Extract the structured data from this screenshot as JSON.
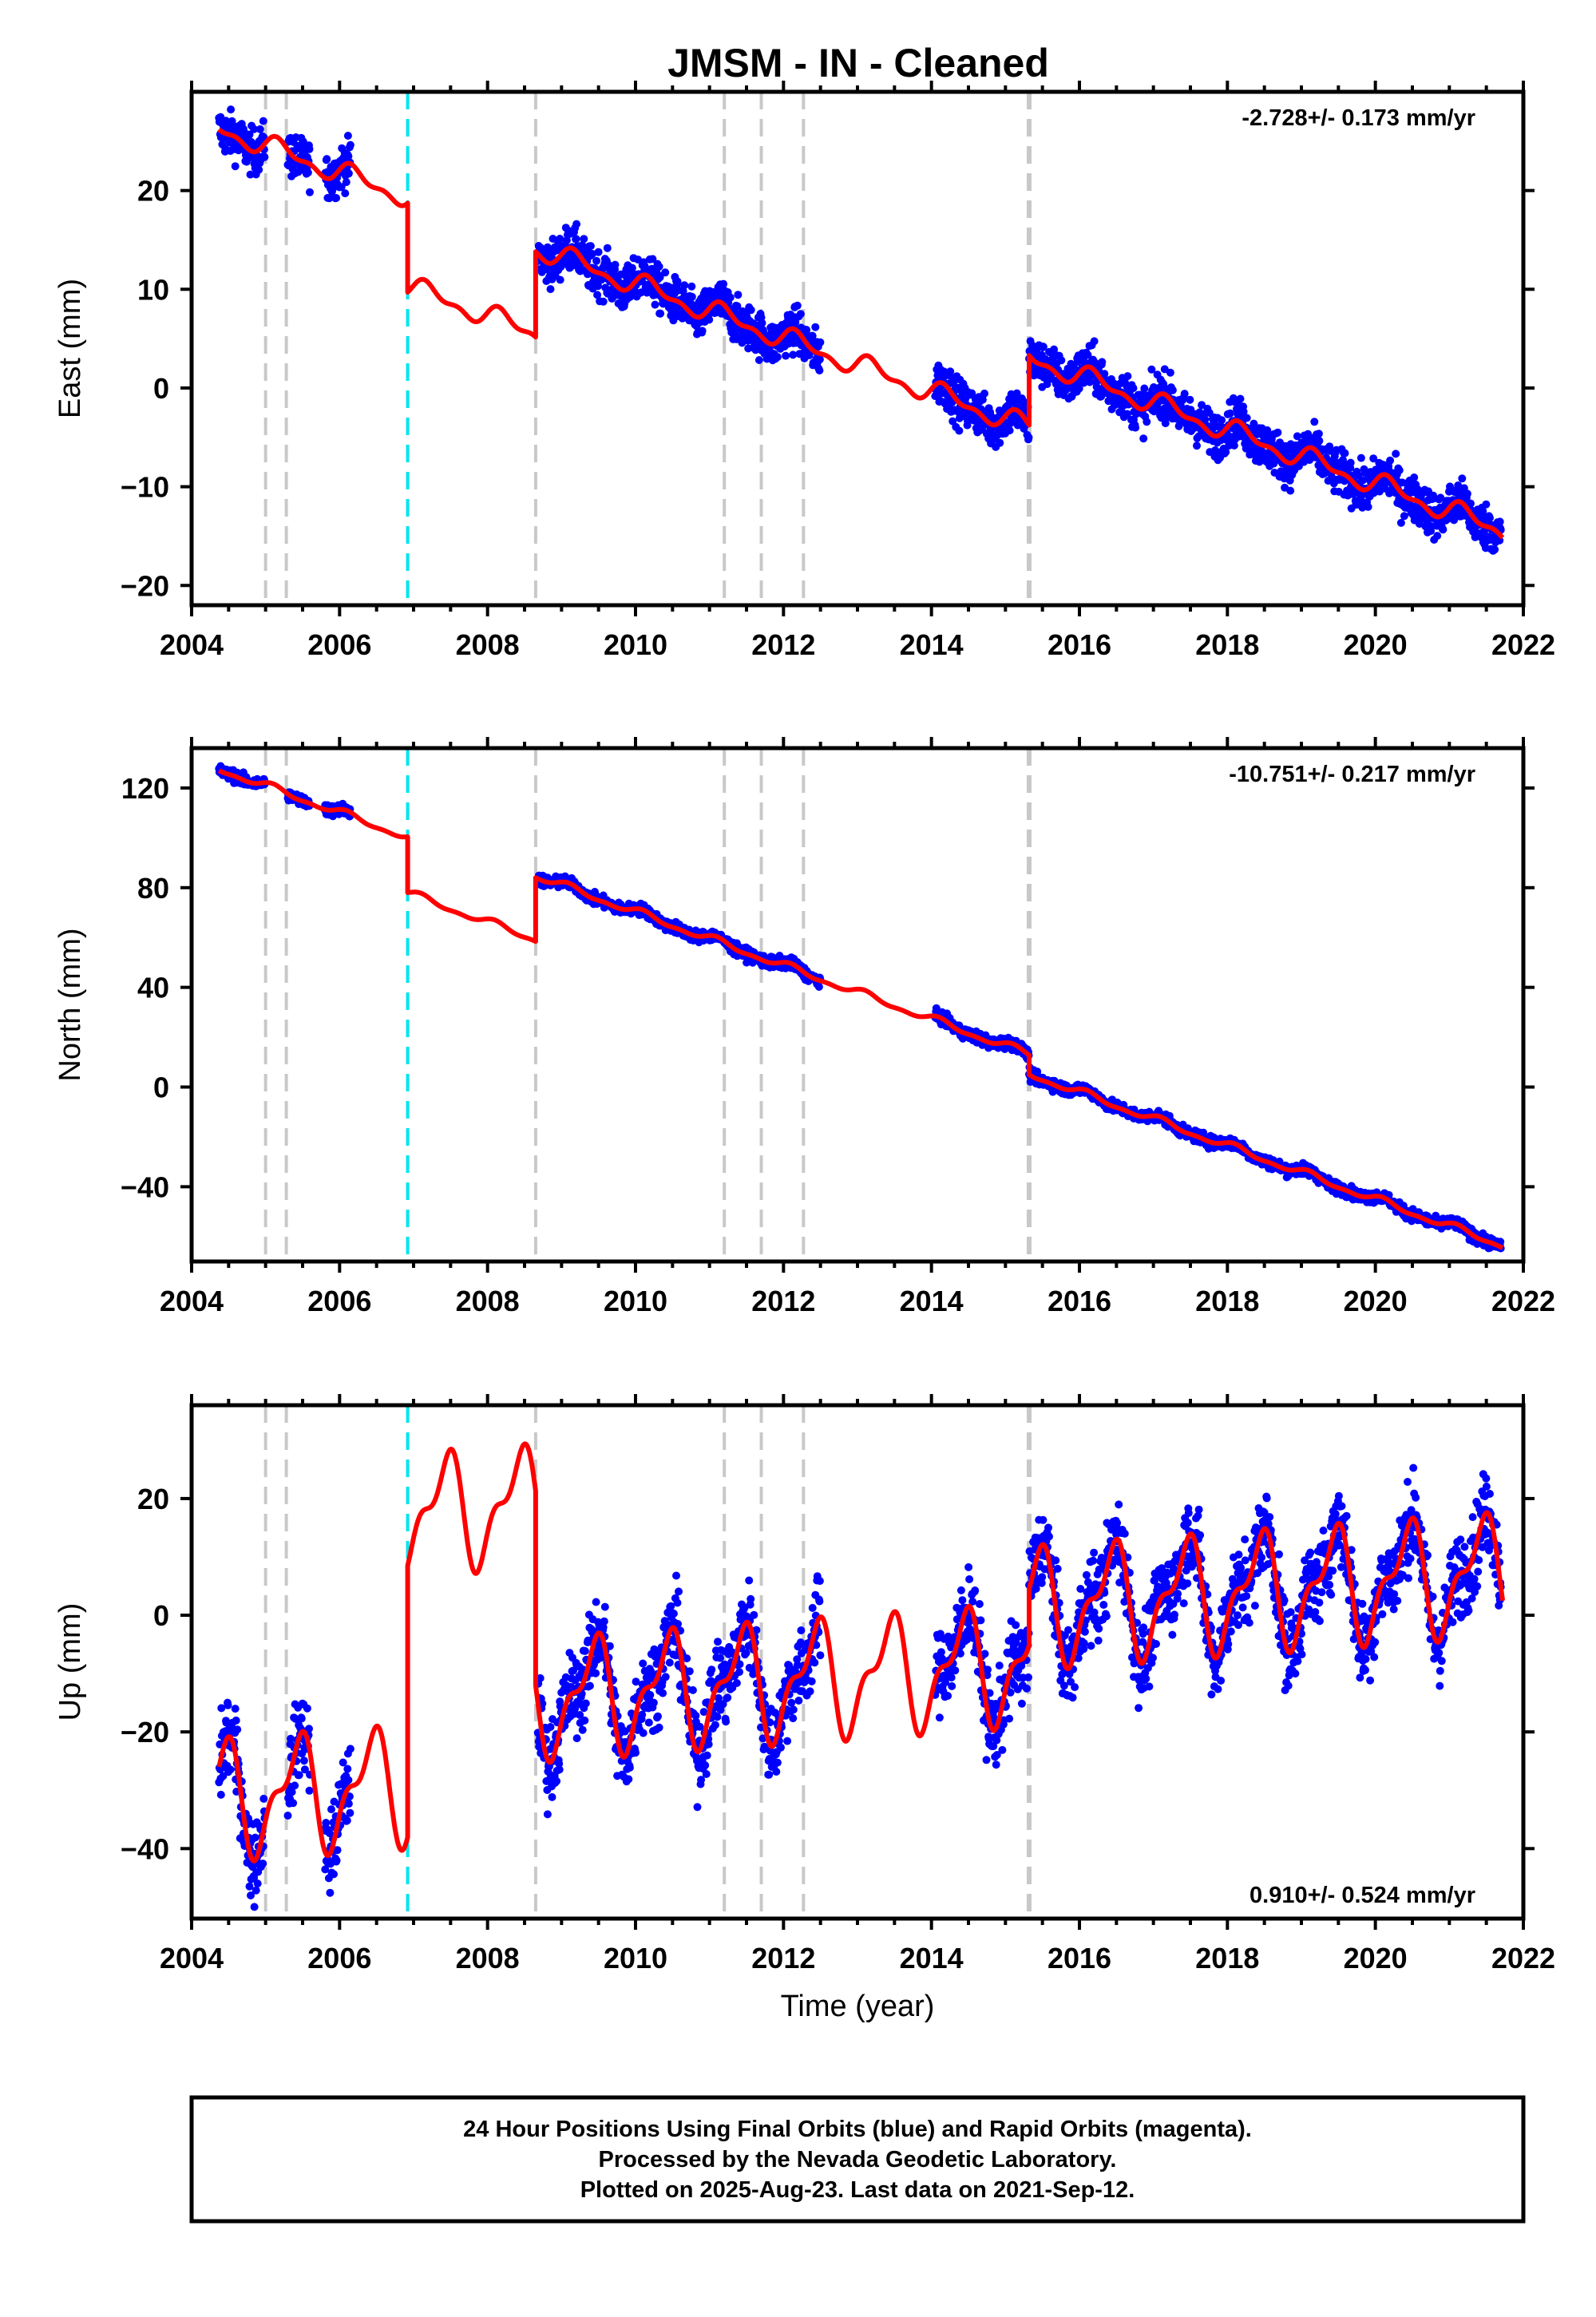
{
  "title": "JMSM  - IN - Cleaned",
  "colors": {
    "data": "#0000ff",
    "model": "#ff0000",
    "offset_equipment": "#c8c8c8",
    "offset_earthquake": "#00e5ee"
  },
  "offsets": {
    "equipment": [
      2005.0,
      2005.28,
      2008.65,
      2011.2,
      2011.7,
      2012.27,
      2015.32
    ],
    "earthquake": [
      2006.92
    ]
  },
  "chart_data": [
    {
      "type": "scatter",
      "name": "east",
      "ylabel": "East (mm)",
      "xlabel": "",
      "xlim": [
        2004,
        2022
      ],
      "ylim": [
        -22,
        30
      ],
      "yticks": [
        -20,
        -10,
        0,
        10,
        20
      ],
      "xticks": [
        2004,
        2006,
        2008,
        2010,
        2012,
        2014,
        2016,
        2018,
        2020,
        2022
      ],
      "rate_text": "-2.728+/- 0.173 mm/yr",
      "rate_position": "top-right",
      "data_spans": [
        [
          2004.37,
          2004.99
        ],
        [
          2005.3,
          2005.6
        ],
        [
          2005.8,
          2006.15
        ],
        [
          2008.68,
          2012.5
        ],
        [
          2014.05,
          2021.7
        ]
      ],
      "data_noise": 1.6,
      "model": {
        "segments": [
          {
            "x0": 2004.37,
            "x1": 2006.92,
            "y0": 26.2,
            "slope": -2.728
          },
          {
            "x0": 2006.92,
            "x1": 2008.65,
            "y0": 9.7,
            "slope": -2.728
          },
          {
            "x0": 2008.65,
            "x1": 2015.32,
            "y0": 13.8,
            "slope": -2.728
          },
          {
            "x0": 2015.32,
            "x1": 2021.72,
            "y0": 3.3,
            "slope": -2.728
          }
        ],
        "amp1": 0.9,
        "amp2": 0.5,
        "phase1": 0.3,
        "phase2": 0.1
      }
    },
    {
      "type": "scatter",
      "name": "north",
      "ylabel": "North (mm)",
      "xlabel": "",
      "xlim": [
        2004,
        2022
      ],
      "ylim": [
        -70,
        136
      ],
      "yticks": [
        -40,
        0,
        40,
        80,
        120
      ],
      "xticks": [
        2004,
        2006,
        2008,
        2010,
        2012,
        2014,
        2016,
        2018,
        2020,
        2022
      ],
      "rate_text": "-10.751+/- 0.217 mm/yr",
      "rate_position": "top-right",
      "data_spans": [
        [
          2004.37,
          2004.99
        ],
        [
          2005.3,
          2005.6
        ],
        [
          2005.8,
          2006.15
        ],
        [
          2008.68,
          2012.5
        ],
        [
          2014.05,
          2021.7
        ]
      ],
      "data_noise": 1.6,
      "model": {
        "segments": [
          {
            "x0": 2004.37,
            "x1": 2006.92,
            "y0": 127,
            "slope": -10.751
          },
          {
            "x0": 2006.92,
            "x1": 2008.65,
            "y0": 78,
            "slope": -10.751
          },
          {
            "x0": 2008.65,
            "x1": 2015.32,
            "y0": 84,
            "slope": -10.751
          },
          {
            "x0": 2015.32,
            "x1": 2021.72,
            "y0": 5.0,
            "slope": -10.751
          }
        ],
        "amp1": 1.3,
        "amp2": 0.6,
        "phase1": 0.9,
        "phase2": 0.4
      }
    },
    {
      "type": "scatter",
      "name": "up",
      "ylabel": "Up (mm)",
      "xlabel": "Time (year)",
      "xlim": [
        2004,
        2022
      ],
      "ylim": [
        -52,
        36
      ],
      "yticks": [
        -40,
        -20,
        0,
        20
      ],
      "xticks": [
        2004,
        2006,
        2008,
        2010,
        2012,
        2014,
        2016,
        2018,
        2020,
        2022
      ],
      "rate_text": "0.910+/- 0.524 mm/yr",
      "rate_position": "bottom-right",
      "data_spans": [
        [
          2004.37,
          2004.99
        ],
        [
          2005.3,
          2005.6
        ],
        [
          2005.8,
          2006.15
        ],
        [
          2008.68,
          2012.5
        ],
        [
          2014.05,
          2021.7
        ]
      ],
      "data_noise": 5.0,
      "model": {
        "segments": [
          {
            "x0": 2004.37,
            "x1": 2006.92,
            "y0": -26,
            "slope": 0.91
          },
          {
            "x0": 2006.92,
            "x1": 2008.65,
            "y0": 8.5,
            "slope": 0.91
          },
          {
            "x0": 2008.65,
            "x1": 2015.32,
            "y0": -12,
            "slope": 0.91
          },
          {
            "x0": 2015.32,
            "x1": 2021.72,
            "y0": 4.5,
            "slope": 0.91
          }
        ],
        "amp1": 8.5,
        "amp2": 4.0,
        "phase1": -1.05,
        "phase2": 0.9
      }
    }
  ],
  "footer": {
    "line1": "24 Hour Positions Using Final Orbits (blue) and Rapid Orbits (magenta).",
    "line2": "Processed by the Nevada Geodetic Laboratory.",
    "line3": "Plotted on 2025-Aug-23. Last data on 2021-Sep-12."
  }
}
